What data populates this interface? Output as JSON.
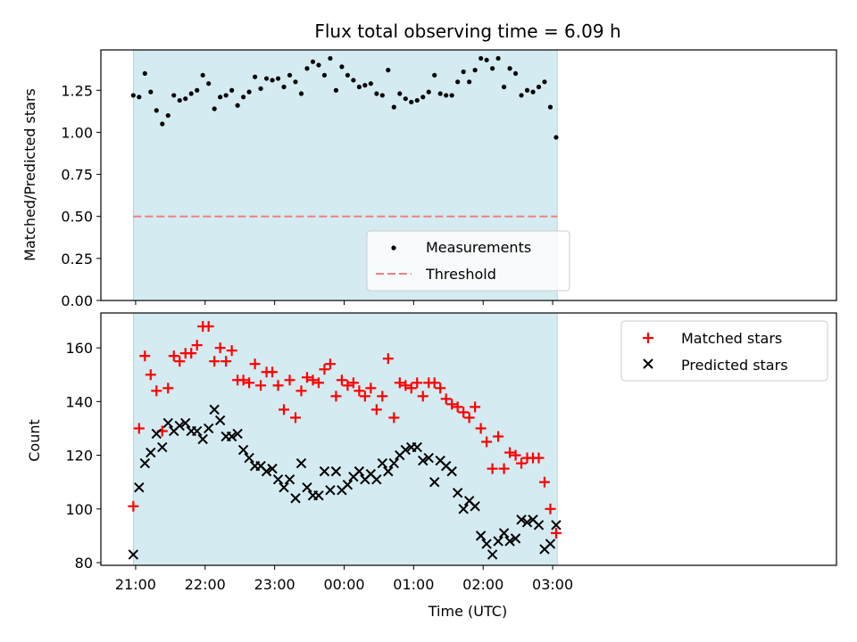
{
  "title": "Flux total observing time = 6.09 h",
  "chart_data": [
    {
      "type": "scatter",
      "ylabel": "Matched/Predicted stars",
      "ylim": [
        0,
        1.49
      ],
      "yticks": [
        0.0,
        0.25,
        0.5,
        0.75,
        1.0,
        1.25
      ],
      "ytick_labels": [
        "0.00",
        "0.25",
        "0.50",
        "0.75",
        "1.00",
        "1.25"
      ],
      "shaded_band": {
        "x_start": "20:58",
        "x_end": "03:04",
        "color": "#d4ebf1"
      },
      "threshold": {
        "name": "Threshold",
        "value": 0.5,
        "color": "#f08080",
        "style": "dashed"
      },
      "legend": {
        "position": "bottom-center",
        "entries": [
          "Measurements",
          "Threshold"
        ]
      },
      "series": [
        {
          "name": "Measurements",
          "marker": "dot",
          "color": "#000000",
          "x": [
            "20:58",
            "21:03",
            "21:08",
            "21:13",
            "21:18",
            "21:23",
            "21:28",
            "21:33",
            "21:38",
            "21:43",
            "21:48",
            "21:53",
            "21:58",
            "22:03",
            "22:08",
            "22:13",
            "22:18",
            "22:23",
            "22:28",
            "22:33",
            "22:38",
            "22:43",
            "22:48",
            "22:53",
            "22:58",
            "23:03",
            "23:08",
            "23:13",
            "23:18",
            "23:23",
            "23:28",
            "23:33",
            "23:38",
            "23:43",
            "23:48",
            "23:53",
            "23:58",
            "00:03",
            "00:08",
            "00:13",
            "00:18",
            "00:23",
            "00:28",
            "00:33",
            "00:38",
            "00:43",
            "00:48",
            "00:53",
            "00:58",
            "01:03",
            "01:08",
            "01:13",
            "01:18",
            "01:23",
            "01:28",
            "01:33",
            "01:38",
            "01:43",
            "01:48",
            "01:53",
            "01:58",
            "02:03",
            "02:08",
            "02:13",
            "02:18",
            "02:23",
            "02:28",
            "02:33",
            "02:38",
            "02:43",
            "02:48",
            "02:53",
            "02:58",
            "03:03"
          ],
          "y": [
            1.22,
            1.21,
            1.35,
            1.24,
            1.13,
            1.05,
            1.1,
            1.22,
            1.19,
            1.2,
            1.23,
            1.25,
            1.34,
            1.29,
            1.14,
            1.21,
            1.22,
            1.25,
            1.16,
            1.21,
            1.24,
            1.33,
            1.26,
            1.32,
            1.31,
            1.32,
            1.27,
            1.34,
            1.3,
            1.23,
            1.38,
            1.42,
            1.4,
            1.34,
            1.44,
            1.25,
            1.39,
            1.34,
            1.31,
            1.27,
            1.28,
            1.29,
            1.23,
            1.22,
            1.37,
            1.15,
            1.23,
            1.2,
            1.18,
            1.19,
            1.21,
            1.24,
            1.34,
            1.23,
            1.22,
            1.22,
            1.3,
            1.36,
            1.3,
            1.37,
            1.44,
            1.43,
            1.38,
            1.44,
            1.27,
            1.38,
            1.35,
            1.22,
            1.25,
            1.24,
            1.27,
            1.3,
            1.15,
            0.97
          ]
        }
      ]
    },
    {
      "type": "scatter",
      "xlabel": "Time (UTC)",
      "ylabel": "Count",
      "ylim": [
        79,
        173
      ],
      "yticks": [
        80,
        100,
        120,
        140,
        160
      ],
      "xticks": [
        "21:00",
        "22:00",
        "23:00",
        "00:00",
        "01:00",
        "02:00",
        "03:00"
      ],
      "shaded_band": {
        "x_start": "20:58",
        "x_end": "03:04",
        "color": "#d4ebf1"
      },
      "legend": {
        "position": "top-right",
        "entries": [
          "Matched stars",
          "Predicted stars"
        ]
      },
      "series": [
        {
          "name": "Matched stars",
          "marker": "plus",
          "color": "#ff0000",
          "x": [
            "20:58",
            "21:03",
            "21:08",
            "21:13",
            "21:18",
            "21:23",
            "21:28",
            "21:33",
            "21:38",
            "21:43",
            "21:48",
            "21:53",
            "21:58",
            "22:03",
            "22:08",
            "22:13",
            "22:18",
            "22:23",
            "22:28",
            "22:33",
            "22:38",
            "22:43",
            "22:48",
            "22:53",
            "22:58",
            "23:03",
            "23:08",
            "23:13",
            "23:18",
            "23:23",
            "23:28",
            "23:33",
            "23:38",
            "23:43",
            "23:48",
            "23:53",
            "23:58",
            "00:03",
            "00:08",
            "00:13",
            "00:18",
            "00:23",
            "00:28",
            "00:33",
            "00:38",
            "00:43",
            "00:48",
            "00:53",
            "00:58",
            "01:03",
            "01:08",
            "01:13",
            "01:18",
            "01:23",
            "01:28",
            "01:33",
            "01:38",
            "01:43",
            "01:48",
            "01:53",
            "01:58",
            "02:03",
            "02:08",
            "02:13",
            "02:18",
            "02:23",
            "02:28",
            "02:33",
            "02:38",
            "02:43",
            "02:48",
            "02:53",
            "02:58",
            "03:03"
          ],
          "y": [
            101,
            130,
            157,
            150,
            144,
            129,
            145,
            157,
            155,
            158,
            158,
            161,
            168,
            168,
            155,
            160,
            155,
            159,
            148,
            148,
            147,
            154,
            146,
            151,
            151,
            146,
            137,
            148,
            134,
            144,
            149,
            148,
            147,
            152,
            154,
            142,
            148,
            146,
            147,
            144,
            142,
            145,
            137,
            142,
            156,
            134,
            147,
            146,
            145,
            147,
            142,
            147,
            147,
            145,
            141,
            139,
            138,
            136,
            134,
            138,
            130,
            125,
            115,
            127,
            115,
            121,
            120,
            117,
            119,
            119,
            119,
            110,
            100,
            91
          ]
        },
        {
          "name": "Predicted stars",
          "marker": "x",
          "color": "#000000",
          "x": [
            "20:58",
            "21:03",
            "21:08",
            "21:13",
            "21:18",
            "21:23",
            "21:28",
            "21:33",
            "21:38",
            "21:43",
            "21:48",
            "21:53",
            "21:58",
            "22:03",
            "22:08",
            "22:13",
            "22:18",
            "22:23",
            "22:28",
            "22:33",
            "22:38",
            "22:43",
            "22:48",
            "22:53",
            "22:58",
            "23:03",
            "23:08",
            "23:13",
            "23:18",
            "23:23",
            "23:28",
            "23:33",
            "23:38",
            "23:43",
            "23:48",
            "23:53",
            "23:58",
            "00:03",
            "00:08",
            "00:13",
            "00:18",
            "00:23",
            "00:28",
            "00:33",
            "00:38",
            "00:43",
            "00:48",
            "00:53",
            "00:58",
            "01:03",
            "01:08",
            "01:13",
            "01:18",
            "01:23",
            "01:28",
            "01:33",
            "01:38",
            "01:43",
            "01:48",
            "01:53",
            "01:58",
            "02:03",
            "02:08",
            "02:13",
            "02:18",
            "02:23",
            "02:28",
            "02:33",
            "02:38",
            "02:43",
            "02:48",
            "02:53",
            "02:58",
            "03:03"
          ],
          "y": [
            83,
            108,
            117,
            121,
            128,
            123,
            132,
            129,
            131,
            132,
            129,
            129,
            126,
            130,
            137,
            133,
            127,
            127,
            128,
            122,
            119,
            116,
            116,
            114,
            115,
            111,
            108,
            111,
            104,
            117,
            108,
            105,
            105,
            114,
            107,
            114,
            107,
            109,
            112,
            114,
            111,
            113,
            111,
            117,
            114,
            117,
            120,
            122,
            123,
            123,
            118,
            119,
            110,
            118,
            116,
            114,
            106,
            100,
            103,
            101,
            90,
            87,
            83,
            88,
            91,
            88,
            89,
            96,
            95,
            96,
            94,
            85,
            87,
            94
          ]
        }
      ]
    }
  ]
}
